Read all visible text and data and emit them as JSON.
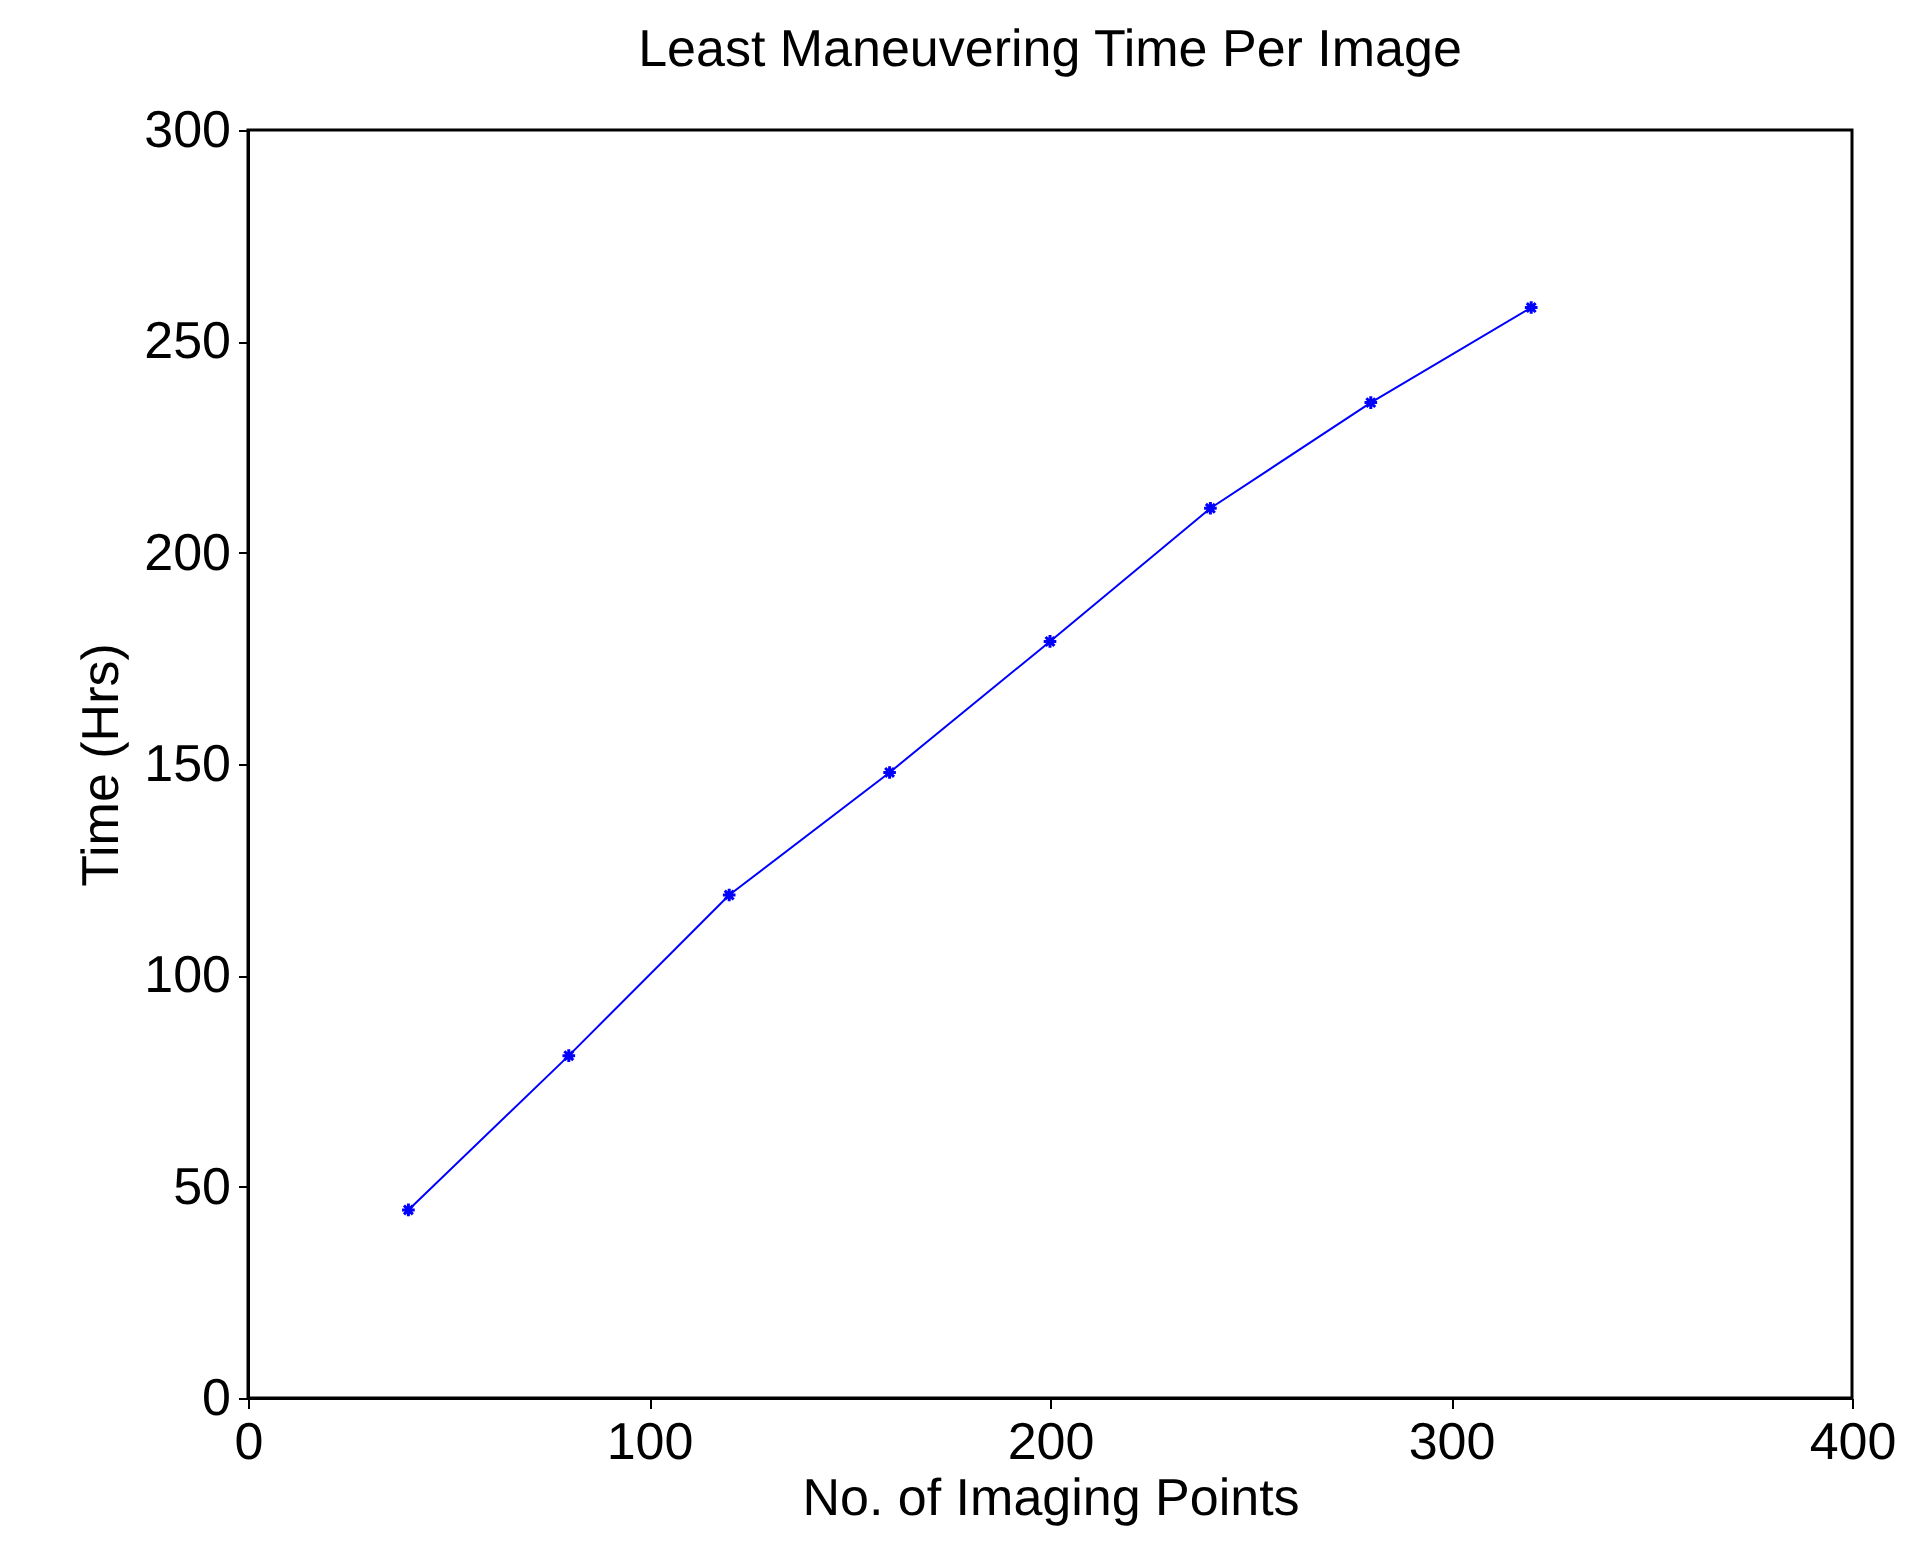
{
  "chart_data": {
    "type": "line",
    "title": "Least Maneuvering Time Per Image",
    "xlabel": "No. of Imaging Points",
    "ylabel": "Time (Hrs)",
    "x": [
      40,
      80,
      120,
      160,
      200,
      240,
      280,
      320
    ],
    "series": [
      {
        "color": "#0000ff",
        "values": [
          44.5,
          81,
          119,
          148,
          179,
          210.5,
          235.5,
          258
        ]
      }
    ],
    "xlim": [
      0,
      400
    ],
    "xticks": [
      0,
      100,
      200,
      300,
      400
    ],
    "ylim": [
      0,
      300
    ],
    "yticks": [
      0,
      50,
      100,
      150,
      200,
      250,
      300
    ],
    "marker": "cross",
    "line_style": "solid",
    "grid": false
  }
}
